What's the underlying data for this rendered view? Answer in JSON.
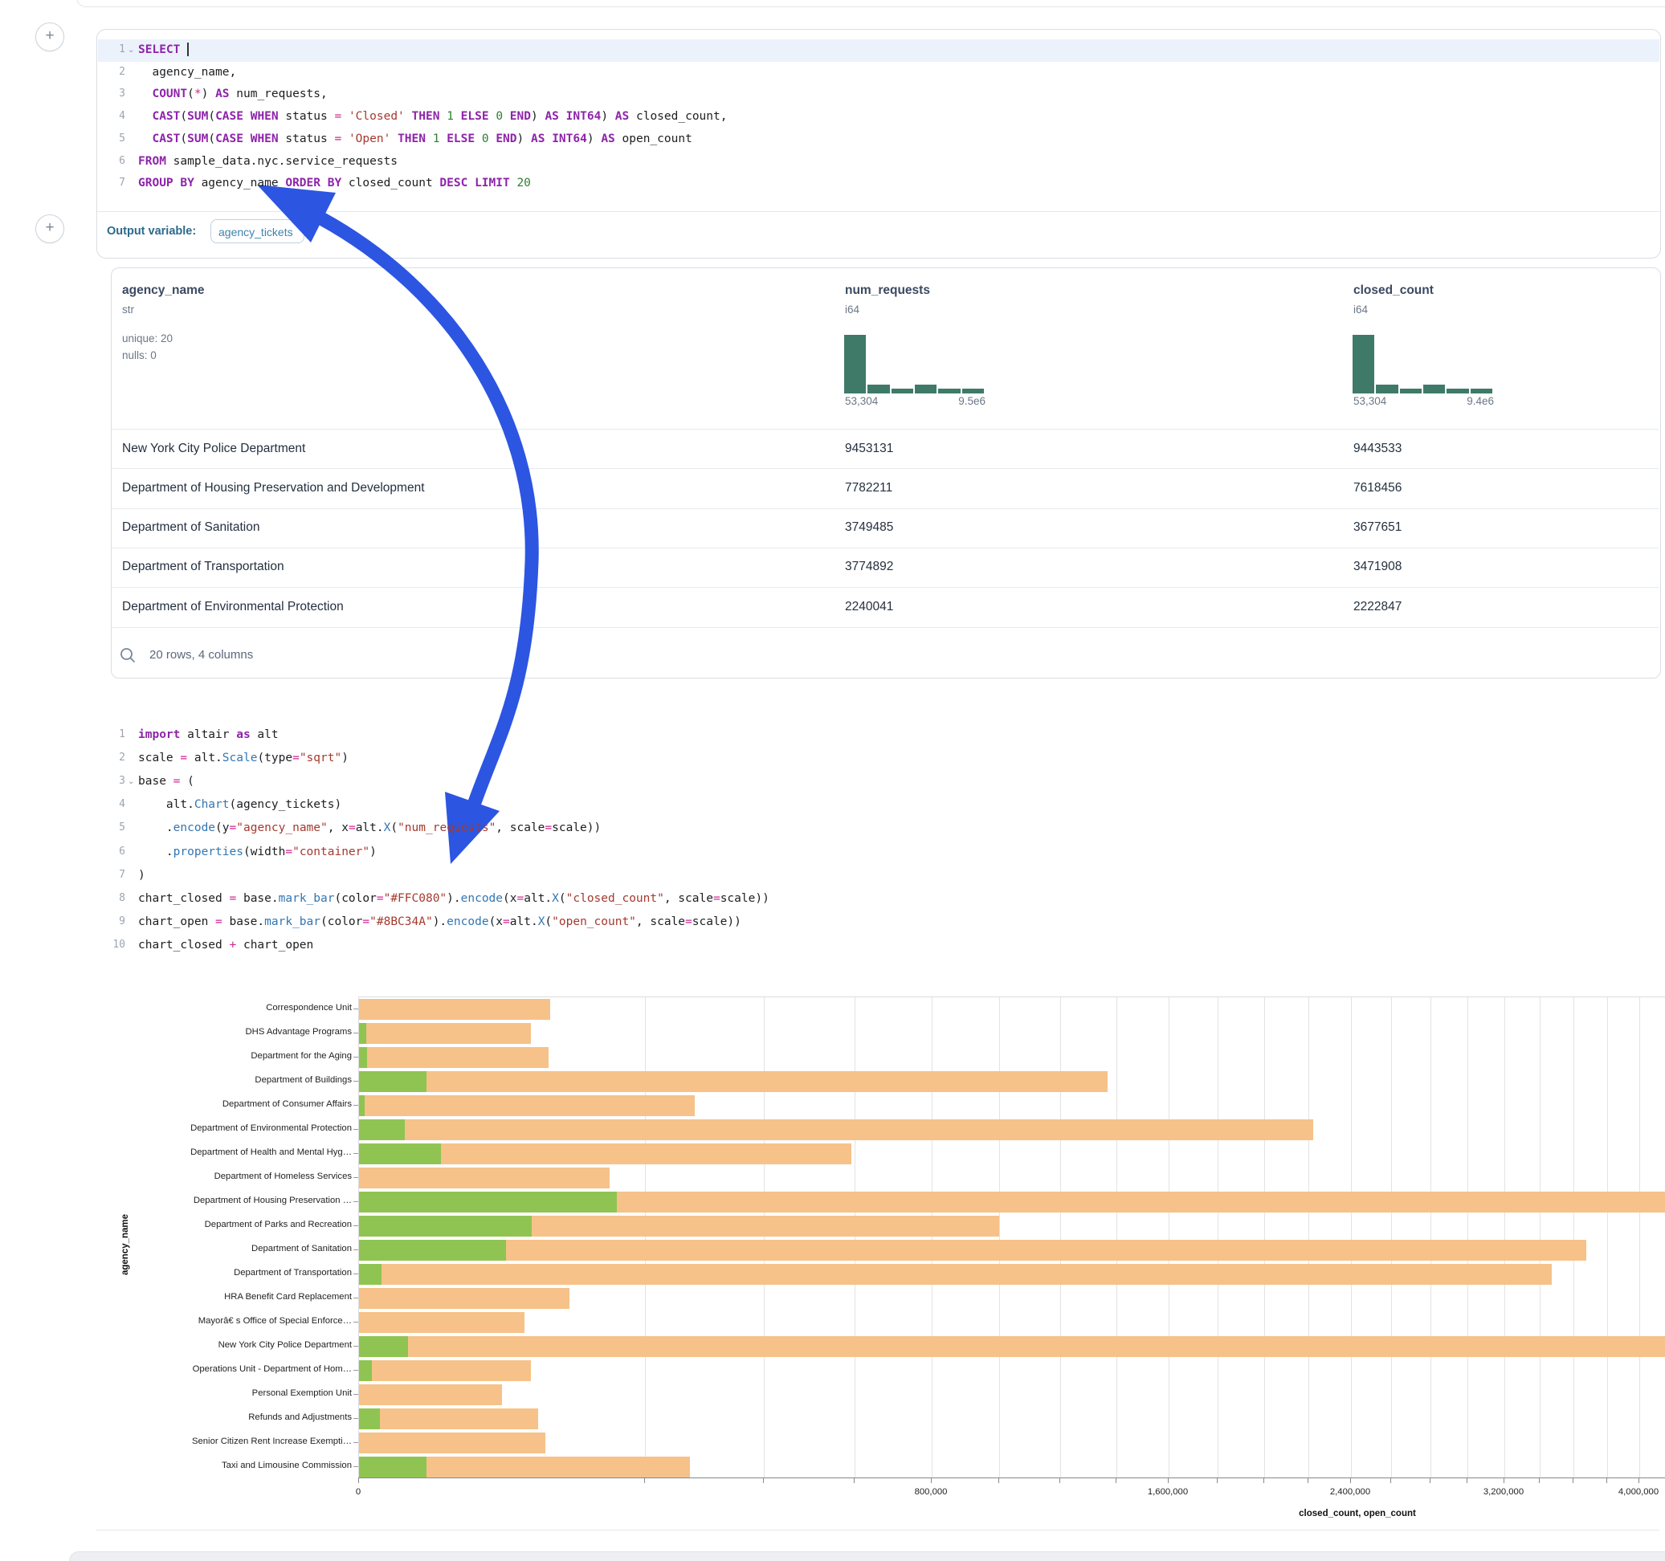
{
  "icons": {
    "plus": "+",
    "fold_chevron": "⌄"
  },
  "colors": {
    "accent_arrow": "#2c55e2",
    "closed_bar": "#F6C289",
    "open_bar": "#8FC452",
    "histogram": "#3F7A69"
  },
  "sql_cell": {
    "lines": [
      {
        "fold": true,
        "cursor": true,
        "tokens": [
          {
            "c": "kw",
            "t": "SELECT"
          },
          {
            "c": "pl",
            "t": " "
          }
        ]
      },
      {
        "tokens": [
          {
            "c": "pl",
            "t": "  agency_name,"
          }
        ]
      },
      {
        "tokens": [
          {
            "c": "pl",
            "t": "  "
          },
          {
            "c": "kw",
            "t": "COUNT"
          },
          {
            "c": "pl",
            "t": "("
          },
          {
            "c": "op",
            "t": "*"
          },
          {
            "c": "pl",
            "t": ") "
          },
          {
            "c": "kw",
            "t": "AS"
          },
          {
            "c": "pl",
            "t": " num_requests,"
          }
        ]
      },
      {
        "tokens": [
          {
            "c": "pl",
            "t": "  "
          },
          {
            "c": "kw",
            "t": "CAST"
          },
          {
            "c": "pl",
            "t": "("
          },
          {
            "c": "kw",
            "t": "SUM"
          },
          {
            "c": "pl",
            "t": "("
          },
          {
            "c": "kw",
            "t": "CASE"
          },
          {
            "c": "pl",
            "t": " "
          },
          {
            "c": "kw",
            "t": "WHEN"
          },
          {
            "c": "pl",
            "t": " status "
          },
          {
            "c": "op",
            "t": "="
          },
          {
            "c": "pl",
            "t": " "
          },
          {
            "c": "str",
            "t": "'Closed'"
          },
          {
            "c": "pl",
            "t": " "
          },
          {
            "c": "kw",
            "t": "THEN"
          },
          {
            "c": "pl",
            "t": " "
          },
          {
            "c": "num",
            "t": "1"
          },
          {
            "c": "pl",
            "t": " "
          },
          {
            "c": "kw",
            "t": "ELSE"
          },
          {
            "c": "pl",
            "t": " "
          },
          {
            "c": "num",
            "t": "0"
          },
          {
            "c": "pl",
            "t": " "
          },
          {
            "c": "kw",
            "t": "END"
          },
          {
            "c": "pl",
            "t": ") "
          },
          {
            "c": "kw",
            "t": "AS"
          },
          {
            "c": "pl",
            "t": " "
          },
          {
            "c": "kw",
            "t": "INT64"
          },
          {
            "c": "pl",
            "t": ") "
          },
          {
            "c": "kw",
            "t": "AS"
          },
          {
            "c": "pl",
            "t": " closed_count,"
          }
        ]
      },
      {
        "tokens": [
          {
            "c": "pl",
            "t": "  "
          },
          {
            "c": "kw",
            "t": "CAST"
          },
          {
            "c": "pl",
            "t": "("
          },
          {
            "c": "kw",
            "t": "SUM"
          },
          {
            "c": "pl",
            "t": "("
          },
          {
            "c": "kw",
            "t": "CASE"
          },
          {
            "c": "pl",
            "t": " "
          },
          {
            "c": "kw",
            "t": "WHEN"
          },
          {
            "c": "pl",
            "t": " status "
          },
          {
            "c": "op",
            "t": "="
          },
          {
            "c": "pl",
            "t": " "
          },
          {
            "c": "str",
            "t": "'Open'"
          },
          {
            "c": "pl",
            "t": " "
          },
          {
            "c": "kw",
            "t": "THEN"
          },
          {
            "c": "pl",
            "t": " "
          },
          {
            "c": "num",
            "t": "1"
          },
          {
            "c": "pl",
            "t": " "
          },
          {
            "c": "kw",
            "t": "ELSE"
          },
          {
            "c": "pl",
            "t": " "
          },
          {
            "c": "num",
            "t": "0"
          },
          {
            "c": "pl",
            "t": " "
          },
          {
            "c": "kw",
            "t": "END"
          },
          {
            "c": "pl",
            "t": ") "
          },
          {
            "c": "kw",
            "t": "AS"
          },
          {
            "c": "pl",
            "t": " "
          },
          {
            "c": "kw",
            "t": "INT64"
          },
          {
            "c": "pl",
            "t": ") "
          },
          {
            "c": "kw",
            "t": "AS"
          },
          {
            "c": "pl",
            "t": " open_count"
          }
        ]
      },
      {
        "tokens": [
          {
            "c": "kw",
            "t": "FROM"
          },
          {
            "c": "pl",
            "t": " sample_data.nyc.service_requests"
          }
        ]
      },
      {
        "tokens": [
          {
            "c": "kw",
            "t": "GROUP BY"
          },
          {
            "c": "pl",
            "t": " agency_name "
          },
          {
            "c": "kw",
            "t": "ORDER BY"
          },
          {
            "c": "pl",
            "t": " closed_count "
          },
          {
            "c": "kw",
            "t": "DESC"
          },
          {
            "c": "pl",
            "t": " "
          },
          {
            "c": "kw",
            "t": "LIMIT"
          },
          {
            "c": "pl",
            "t": " "
          },
          {
            "c": "num",
            "t": "20"
          }
        ]
      }
    ],
    "output_label": "Output variable:",
    "output_value": "agency_tickets"
  },
  "table": {
    "columns": [
      {
        "name": "agency_name",
        "type": "str",
        "stats": [
          "unique: 20",
          "nulls: 0"
        ]
      },
      {
        "name": "num_requests",
        "type": "i64",
        "hist": [
          1,
          0.15,
          0.08,
          0.15,
          0.08,
          0.08
        ],
        "min_label": "53,304",
        "max_label": "9.5e6"
      },
      {
        "name": "closed_count",
        "type": "i64",
        "hist": [
          1,
          0.15,
          0.08,
          0.15,
          0.08,
          0.08
        ],
        "min_label": "53,304",
        "max_label": "9.4e6"
      }
    ],
    "rows": [
      [
        "New York City Police Department",
        "9453131",
        "9443533"
      ],
      [
        "Department of Housing Preservation and Development",
        "7782211",
        "7618456"
      ],
      [
        "Department of Sanitation",
        "3749485",
        "3677651"
      ],
      [
        "Department of Transportation",
        "3774892",
        "3471908"
      ],
      [
        "Department of Environmental Protection",
        "2240041",
        "2222847"
      ]
    ],
    "footer": "20 rows, 4 columns"
  },
  "python_cell": {
    "lines": [
      {
        "tokens": [
          {
            "c": "kw",
            "t": "import"
          },
          {
            "c": "pl",
            "t": " altair "
          },
          {
            "c": "kw",
            "t": "as"
          },
          {
            "c": "pl",
            "t": " alt"
          }
        ]
      },
      {
        "tokens": [
          {
            "c": "pl",
            "t": "scale "
          },
          {
            "c": "op",
            "t": "="
          },
          {
            "c": "pl",
            "t": " alt."
          },
          {
            "c": "fn",
            "t": "Scale"
          },
          {
            "c": "pl",
            "t": "(type"
          },
          {
            "c": "op",
            "t": "="
          },
          {
            "c": "str",
            "t": "\"sqrt\""
          },
          {
            "c": "pl",
            "t": ")"
          }
        ]
      },
      {
        "fold": true,
        "tokens": [
          {
            "c": "pl",
            "t": "base "
          },
          {
            "c": "op",
            "t": "="
          },
          {
            "c": "pl",
            "t": " ("
          }
        ]
      },
      {
        "tokens": [
          {
            "c": "pl",
            "t": "    alt."
          },
          {
            "c": "fn",
            "t": "Chart"
          },
          {
            "c": "pl",
            "t": "(agency_tickets)"
          }
        ]
      },
      {
        "tokens": [
          {
            "c": "pl",
            "t": "    ."
          },
          {
            "c": "fn",
            "t": "encode"
          },
          {
            "c": "pl",
            "t": "(y"
          },
          {
            "c": "op",
            "t": "="
          },
          {
            "c": "str",
            "t": "\"agency_name\""
          },
          {
            "c": "pl",
            "t": ", x"
          },
          {
            "c": "op",
            "t": "="
          },
          {
            "c": "pl",
            "t": "alt."
          },
          {
            "c": "fn",
            "t": "X"
          },
          {
            "c": "pl",
            "t": "("
          },
          {
            "c": "str",
            "t": "\"num_requests\""
          },
          {
            "c": "pl",
            "t": ", scale"
          },
          {
            "c": "op",
            "t": "="
          },
          {
            "c": "pl",
            "t": "scale))"
          }
        ]
      },
      {
        "tokens": [
          {
            "c": "pl",
            "t": "    ."
          },
          {
            "c": "fn",
            "t": "properties"
          },
          {
            "c": "pl",
            "t": "(width"
          },
          {
            "c": "op",
            "t": "="
          },
          {
            "c": "str",
            "t": "\"container\""
          },
          {
            "c": "pl",
            "t": ")"
          }
        ]
      },
      {
        "tokens": [
          {
            "c": "pl",
            "t": ")"
          }
        ]
      },
      {
        "tokens": [
          {
            "c": "pl",
            "t": "chart_closed "
          },
          {
            "c": "op",
            "t": "="
          },
          {
            "c": "pl",
            "t": " base."
          },
          {
            "c": "fn",
            "t": "mark_bar"
          },
          {
            "c": "pl",
            "t": "(color"
          },
          {
            "c": "op",
            "t": "="
          },
          {
            "c": "str",
            "t": "\"#FFC080\""
          },
          {
            "c": "pl",
            "t": ")."
          },
          {
            "c": "fn",
            "t": "encode"
          },
          {
            "c": "pl",
            "t": "(x"
          },
          {
            "c": "op",
            "t": "="
          },
          {
            "c": "pl",
            "t": "alt."
          },
          {
            "c": "fn",
            "t": "X"
          },
          {
            "c": "pl",
            "t": "("
          },
          {
            "c": "str",
            "t": "\"closed_count\""
          },
          {
            "c": "pl",
            "t": ", scale"
          },
          {
            "c": "op",
            "t": "="
          },
          {
            "c": "pl",
            "t": "scale))"
          }
        ]
      },
      {
        "tokens": [
          {
            "c": "pl",
            "t": "chart_open "
          },
          {
            "c": "op",
            "t": "="
          },
          {
            "c": "pl",
            "t": " base."
          },
          {
            "c": "fn",
            "t": "mark_bar"
          },
          {
            "c": "pl",
            "t": "(color"
          },
          {
            "c": "op",
            "t": "="
          },
          {
            "c": "str",
            "t": "\"#8BC34A\""
          },
          {
            "c": "pl",
            "t": ")."
          },
          {
            "c": "fn",
            "t": "encode"
          },
          {
            "c": "pl",
            "t": "(x"
          },
          {
            "c": "op",
            "t": "="
          },
          {
            "c": "pl",
            "t": "alt."
          },
          {
            "c": "fn",
            "t": "X"
          },
          {
            "c": "pl",
            "t": "("
          },
          {
            "c": "str",
            "t": "\"open_count\""
          },
          {
            "c": "pl",
            "t": ", scale"
          },
          {
            "c": "op",
            "t": "="
          },
          {
            "c": "pl",
            "t": "scale))"
          }
        ]
      },
      {
        "tokens": [
          {
            "c": "pl",
            "t": "chart_closed "
          },
          {
            "c": "op",
            "t": "+"
          },
          {
            "c": "pl",
            "t": " chart_open"
          }
        ]
      }
    ]
  },
  "chart_data": {
    "type": "bar",
    "orientation": "horizontal",
    "x_scale": "sqrt",
    "title": "",
    "ylabel": "agency_name",
    "xlabel": "closed_count, open_count",
    "categories": [
      "Correspondence Unit",
      "DHS Advantage Programs",
      "Department for the Aging",
      "Department of Buildings",
      "Department of Consumer Affairs",
      "Department of Environmental Protection",
      "Department of Health and Mental Hyg…",
      "Department of Homeless Services",
      "Department of Housing Preservation …",
      "Department of Parks and Recreation",
      "Department of Sanitation",
      "Department of Transportation",
      "HRA Benefit Card Replacement",
      "Mayorâ€ s Office of Special Enforce…",
      "New York City Police Department",
      "Operations Unit - Department of Hom…",
      "Personal Exemption Unit",
      "Refunds and Adjustments",
      "Senior Citizen Rent Increase Exempti…",
      "Taxi and Limousine Commission"
    ],
    "series": [
      {
        "name": "closed_count",
        "color": "#F6C289",
        "values": [
          89000,
          72000,
          88000,
          1367000,
          275000,
          2222847,
          592000,
          153000,
          7618456,
          1000000,
          3677651,
          3471908,
          108000,
          67000,
          9443533,
          72000,
          50000,
          78000,
          85000,
          267000
        ]
      },
      {
        "name": "open_count",
        "color": "#8FC452",
        "values": [
          0,
          130,
          160,
          11100,
          80,
          5100,
          16400,
          0,
          162000,
          73000,
          53000,
          1200,
          0,
          0,
          5900,
          400,
          0,
          1100,
          0,
          11100
        ]
      }
    ],
    "x_ticks": [
      {
        "value": 0,
        "label": "0"
      },
      {
        "value": 800000,
        "label": "800,000"
      },
      {
        "value": 1600000,
        "label": "1,600,000"
      },
      {
        "value": 2400000,
        "label": "2,400,000"
      },
      {
        "value": 3200000,
        "label": "3,200,000"
      },
      {
        "value": 4000000,
        "label": "4,000,000"
      }
    ],
    "grid_step": 200000,
    "x_domain_max": 9443533,
    "grid": true,
    "legend": "none"
  }
}
